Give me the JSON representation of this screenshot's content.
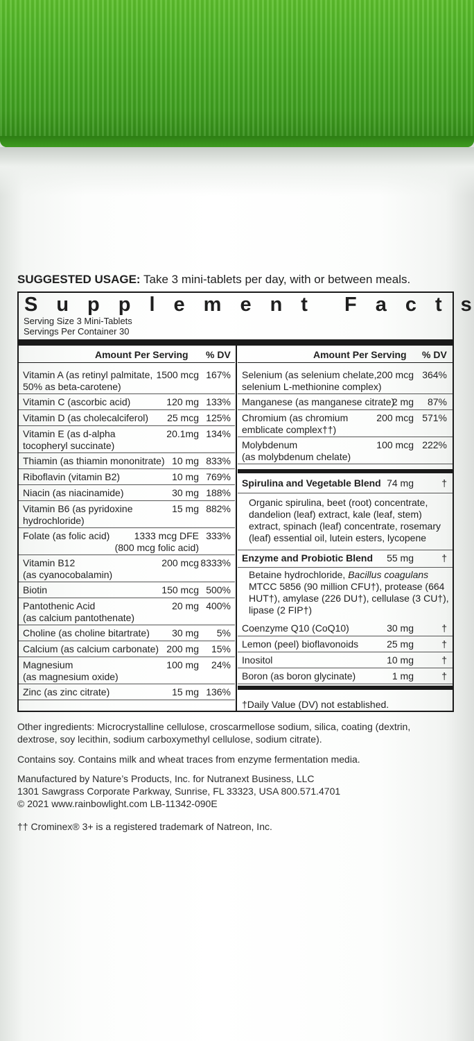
{
  "usage": {
    "label": "SUGGESTED USAGE:",
    "text": " Take 3 mini-tablets per day, with or between meals."
  },
  "facts": {
    "title_word1": "Supplement",
    "title_word2": "Facts",
    "serving_size": "Serving Size 3 Mini-Tablets",
    "servings_per": "Servings Per Container 30",
    "hdr_amount": "Amount Per Serving",
    "hdr_dv": "% DV",
    "left": [
      {
        "n1": "Vitamin A (as retinyl palmitate,",
        "n2": "50% as beta-carotene)",
        "amt": "1500 mcg",
        "dv": "167%"
      },
      {
        "n1": "Vitamin C (ascorbic acid)",
        "n2": "",
        "amt": "120 mg",
        "dv": "133%"
      },
      {
        "n1": "Vitamin D (as cholecalciferol)",
        "n2": "",
        "amt": "25 mcg",
        "dv": "125%"
      },
      {
        "n1": "Vitamin E (as d-alpha",
        "n2": "tocopheryl succinate)",
        "amt": "20.1mg",
        "dv": "134%"
      },
      {
        "n1": "Thiamin (as thiamin mononitrate)",
        "n2": "",
        "amt": "10 mg",
        "dv": "833%"
      },
      {
        "n1": "Riboflavin (vitamin B2)",
        "n2": "",
        "amt": "10 mg",
        "dv": "769%"
      },
      {
        "n1": "Niacin (as niacinamide)",
        "n2": "",
        "amt": "30 mg",
        "dv": "188%"
      },
      {
        "n1": "Vitamin B6 (as pyridoxine",
        "n2": "hydrochloride)",
        "amt": "15 mg",
        "dv": "882%"
      },
      {
        "n1": "Folate (as folic acid)",
        "n2": "",
        "amt": "1333 mcg DFE",
        "amt2": "(800 mcg folic acid)",
        "dv": "333%"
      },
      {
        "n1": "Vitamin B12",
        "n2": "(as cyanocobalamin)",
        "amt": "200 mcg",
        "dv": "8333%"
      },
      {
        "n1": "Biotin",
        "n2": "",
        "amt": "150 mcg",
        "dv": "500%"
      },
      {
        "n1": "Pantothenic Acid",
        "n2": "(as calcium pantothenate)",
        "amt": "20 mg",
        "dv": "400%"
      },
      {
        "n1": "Choline (as choline bitartrate)",
        "n2": "",
        "amt": "30 mg",
        "dv": "5%"
      },
      {
        "n1": "Calcium (as calcium carbonate)",
        "n2": "",
        "amt": "200 mg",
        "dv": "15%"
      },
      {
        "n1": "Magnesium",
        "n2": "(as magnesium oxide)",
        "amt": "100 mg",
        "dv": "24%"
      },
      {
        "n1": "Zinc (as zinc citrate)",
        "n2": "",
        "amt": "15 mg",
        "dv": "136%"
      }
    ],
    "right": [
      {
        "n1": "Selenium (as selenium chelate,",
        "n2": "selenium L-methionine complex)",
        "amt": "200 mcg",
        "dv": "364%"
      },
      {
        "n1": "Manganese (as manganese citrate)",
        "n2": "",
        "amt": "2 mg",
        "dv": "87%"
      },
      {
        "n1": "Chromium (as chromium",
        "n2": "emblicate complex††)",
        "amt": "200 mcg",
        "dv": "571%"
      },
      {
        "n1": "Molybdenum",
        "n2": "(as molybdenum chelate)",
        "amt": "100 mcg",
        "dv": "222%"
      }
    ],
    "blend1": {
      "name": "Spirulina and Vegetable Blend",
      "amt": "74 mg",
      "dv": "†",
      "desc": [
        "Organic spirulina, beet (root) concentrate,",
        "dandelion (leaf) extract, kale (leaf, stem)",
        "extract, spinach (leaf) concentrate, rosemary",
        "(leaf) essential oil, lutein esters, lycopene"
      ]
    },
    "blend2": {
      "name": "Enzyme and Probiotic Blend",
      "amt": "55 mg",
      "dv": "†",
      "desc_pre": "Betaine hydrochloride, ",
      "desc_italic": "Bacillus coagulans",
      "desc": [
        "MTCC 5856 (90 million CFU†), protease (664",
        "HUT†), amylase (226 DU†), cellulase (3 CU†),",
        "lipase (2 FIP†)"
      ]
    },
    "right2": [
      {
        "n1": "Coenzyme Q10 (CoQ10)",
        "amt": "30 mg",
        "dv": "†"
      },
      {
        "n1": "Lemon (peel) bioflavonoids",
        "amt": "25 mg",
        "dv": "†"
      },
      {
        "n1": "Inositol",
        "amt": "10 mg",
        "dv": "†"
      },
      {
        "n1": "Boron (as boron glycinate)",
        "amt": "1 mg",
        "dv": "†"
      }
    ],
    "dagger_note": "†Daily Value (DV) not established."
  },
  "other": {
    "ingredients1": "Other ingredients: Microcrystalline cellulose, croscarmellose sodium, silica, coating (dextrin,",
    "ingredients2": "dextrose, soy lecithin, sodium carboxymethyl cellulose, sodium citrate).",
    "allergens": "Contains soy. Contains milk and wheat traces from enzyme fermentation media.",
    "mfr1": "Manufactured by Nature’s Products, Inc. for Nutranext Business, LLC",
    "mfr2": "1301 Sawgrass Corporate Parkway, Sunrise, FL 33323, USA  800.571.4701",
    "mfr3": "© 2021 www.rainbowlight.com  LB-11342-090E",
    "trademark": "†† Crominex® 3+ is a registered trademark of Natreon, Inc."
  },
  "colors": {
    "cap_green": "#4cb126",
    "ink": "#1a1a1a"
  }
}
